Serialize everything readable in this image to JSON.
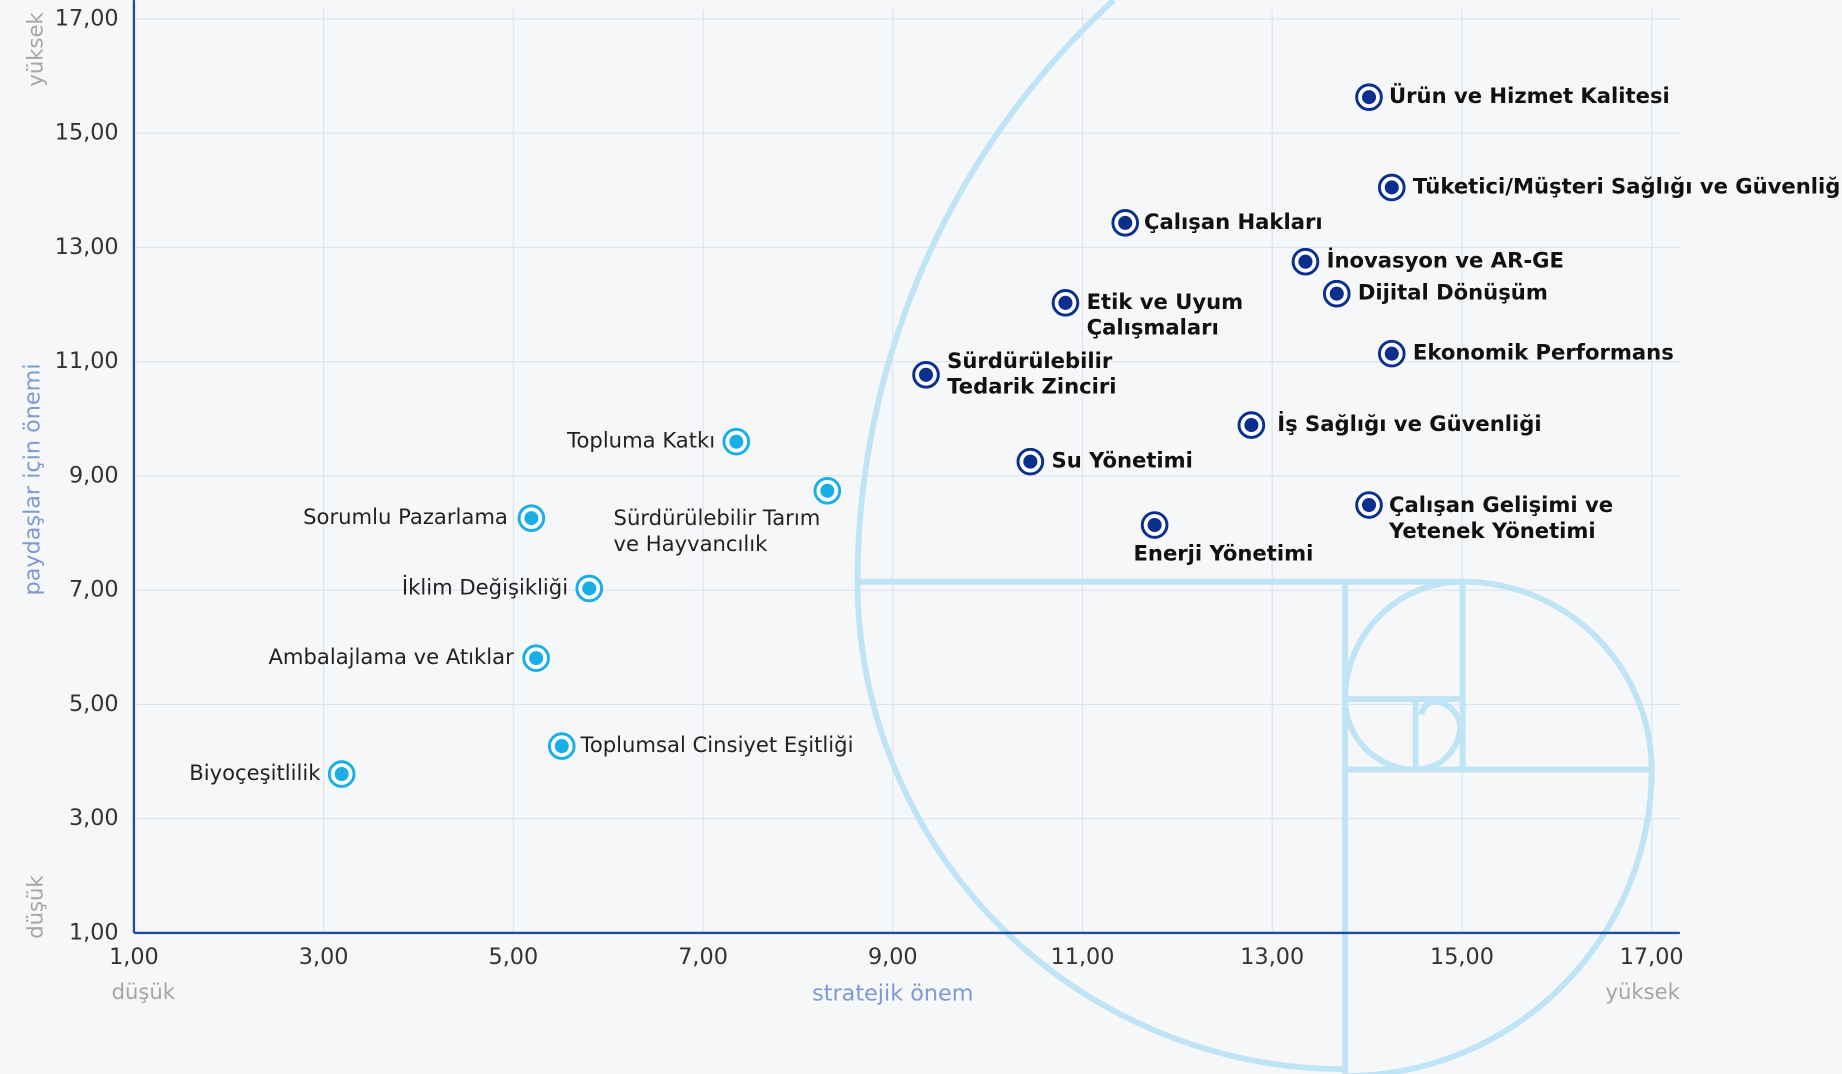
{
  "chart_data": {
    "type": "scatter",
    "xlabel": "stratejik önem",
    "ylabel": "paydaşlar için önemi",
    "x_low_label": "düşük",
    "x_high_label": "yüksek",
    "y_low_label": "düşük",
    "y_high_label": "yüksek",
    "xlim": [
      1,
      17
    ],
    "ylim": [
      1,
      17
    ],
    "xticks": [
      {
        "value": 1,
        "label": "1,00"
      },
      {
        "value": 3,
        "label": "3,00"
      },
      {
        "value": 5,
        "label": "5,00"
      },
      {
        "value": 7,
        "label": "7,00"
      },
      {
        "value": 9,
        "label": "9,00"
      },
      {
        "value": 11,
        "label": "11,00"
      },
      {
        "value": 13,
        "label": "13,00"
      },
      {
        "value": 15,
        "label": "15,00"
      },
      {
        "value": 17,
        "label": "17,00"
      }
    ],
    "yticks": [
      {
        "value": 1,
        "label": "1,00"
      },
      {
        "value": 3,
        "label": "3,00"
      },
      {
        "value": 5,
        "label": "5,00"
      },
      {
        "value": 7,
        "label": "7,00"
      },
      {
        "value": 9,
        "label": "9,00"
      },
      {
        "value": 11,
        "label": "11,00"
      },
      {
        "value": 13,
        "label": "13,00"
      },
      {
        "value": 15,
        "label": "15,00"
      },
      {
        "value": 17,
        "label": "17,00"
      }
    ],
    "grid": true,
    "series": [
      {
        "color": "#0b2f8f",
        "x": [
          14.02,
          14.26,
          11.45,
          13.35,
          13.68,
          10.82,
          14.26,
          9.35,
          12.78,
          10.45,
          14.02,
          11.76
        ],
        "y": [
          15.63,
          14.05,
          13.43,
          12.75,
          12.19,
          12.03,
          11.14,
          10.77,
          9.89,
          9.25,
          8.49,
          8.14
        ],
        "labels": [
          [
            "Ürün ve Hizmet Kalitesi"
          ],
          [
            "Tüketici/Müşteri Sağlığı ve Güvenliği"
          ],
          [
            "Çalışan Hakları"
          ],
          [
            "İnovasyon ve AR-GE"
          ],
          [
            "Dijital Dönüşüm"
          ],
          [
            "Etik ve Uyum",
            "Çalışmaları"
          ],
          [
            "Ekonomik Performans"
          ],
          [
            "Sürdürülebilir",
            "Tedarik Zinciri"
          ],
          [
            "İş Sağlığı ve Güvenliği"
          ],
          [
            "Su Yönetimi"
          ],
          [
            "Çalışan Gelişimi ve",
            "Yetenek Yönetimi"
          ],
          [
            "Enerji Yönetimi"
          ]
        ]
      },
      {
        "color": "#1aaee6",
        "x": [
          7.35,
          8.31,
          5.19,
          5.8,
          5.24,
          5.51,
          3.19
        ],
        "y": [
          9.6,
          8.74,
          8.26,
          7.03,
          5.81,
          4.27,
          3.78
        ],
        "labels": [
          [
            "Topluma Katkı"
          ],
          [
            "Sürdürülebilir Tarım",
            "ve Hayvancılık"
          ],
          [
            "Sorumlu Pazarlama"
          ],
          [
            "İklim Değişikliği"
          ],
          [
            "Ambalajlama ve Atıklar"
          ],
          [
            "Toplumsal Cinsiyet Eşitliği"
          ],
          [
            "Biyoçeşitlilik"
          ]
        ]
      }
    ]
  }
}
